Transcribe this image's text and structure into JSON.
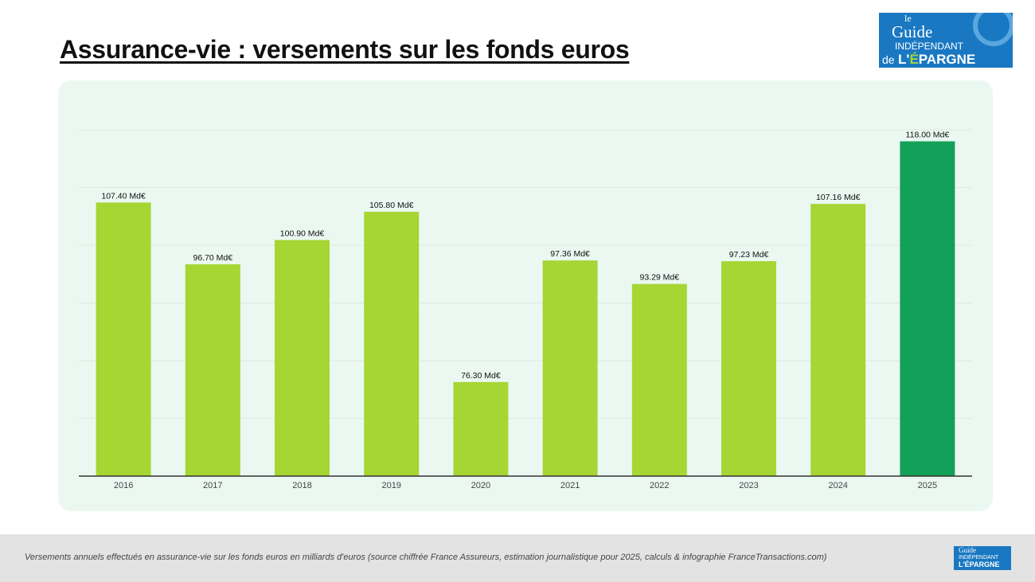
{
  "header": {
    "title": "Assurance-vie : versements sur les fonds euros"
  },
  "logo": {
    "text": "le Guide INDÉPENDANT de L'ÉPARGNE",
    "site": "FranceTransactions.com"
  },
  "footer": {
    "caption": "Versements annuels effectués en assurance-vie sur les fonds euros en milliards d'euros (source chiffrée France Assureurs, estimation journalistique pour 2025, calculs & infographie FranceTransactions.com)"
  },
  "colors": {
    "bar": "#a6d634",
    "highlight": "#13a058",
    "panel": "#eaf8f1"
  },
  "chart_data": {
    "type": "bar",
    "categories": [
      "2016",
      "2017",
      "2018",
      "2019",
      "2020",
      "2021",
      "2022",
      "2023",
      "2024",
      "2025"
    ],
    "values": [
      107.4,
      96.7,
      100.9,
      105.8,
      76.3,
      97.36,
      93.29,
      97.23,
      107.16,
      118.0
    ],
    "data_labels": [
      "107.40 Md€",
      "96.70 Md€",
      "100.90 Md€",
      "105.80 Md€",
      "76.30 Md€",
      "97.36 Md€",
      "93.29 Md€",
      "97.23 Md€",
      "107.16 Md€",
      "118.00 Md€"
    ],
    "highlighted_category": "2025",
    "ylim": [
      60,
      120
    ],
    "grid_step": 10,
    "grid": true,
    "y_tick_labels_shown": false,
    "title": "",
    "xlabel": "",
    "ylabel": ""
  }
}
